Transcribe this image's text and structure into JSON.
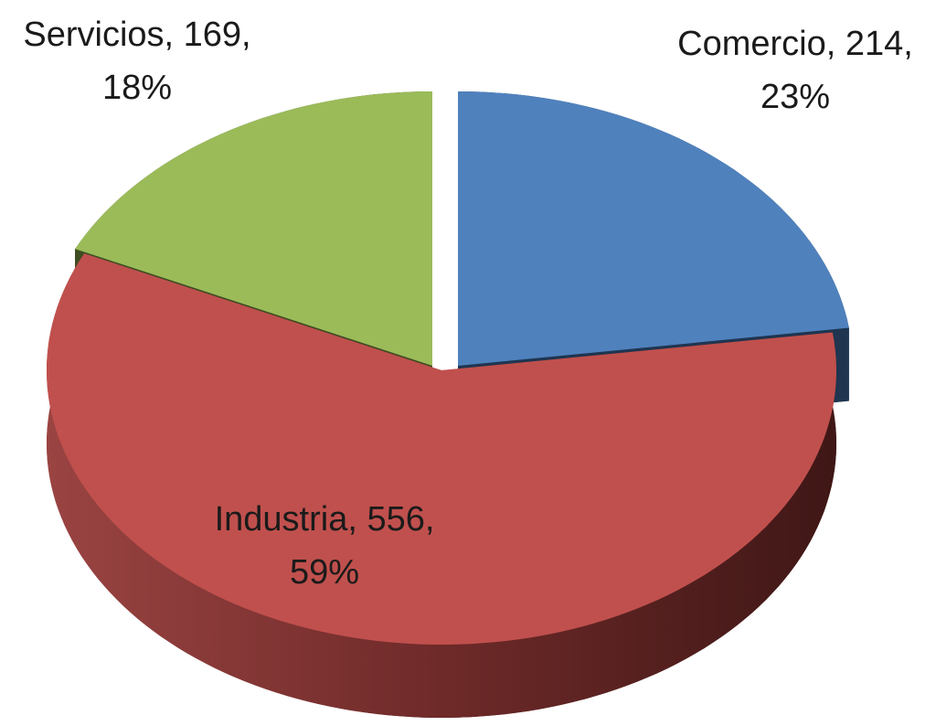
{
  "chart_data": {
    "type": "pie3d",
    "categories": [
      "Comercio",
      "Industria",
      "Servicios"
    ],
    "values": [
      214,
      556,
      169
    ],
    "colors": [
      "#4f81bd",
      "#c0504d",
      "#9bbb59"
    ],
    "side_colors": [
      "#1f3550",
      "#5e2322",
      "#3f4d22"
    ],
    "data_labels": [
      [
        "Comercio, 214,",
        "23%"
      ],
      [
        "Industria, 556,",
        "59%"
      ],
      [
        "Servicios, 169,",
        "18%"
      ]
    ]
  }
}
